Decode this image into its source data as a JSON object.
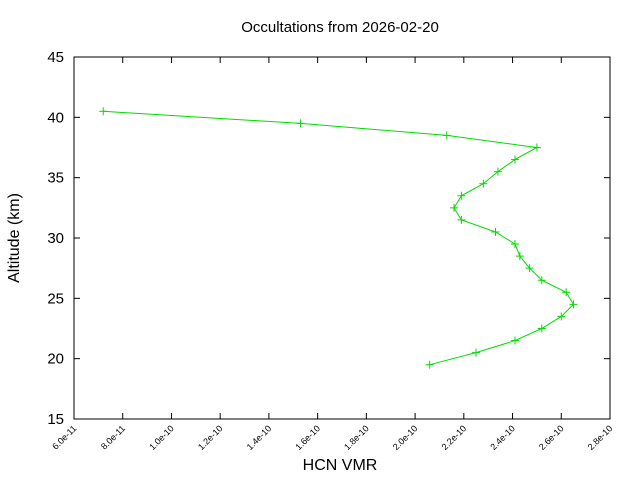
{
  "chart_data": {
    "type": "line",
    "title": "Occultations from 2026-02-20",
    "xlabel": "HCN VMR",
    "ylabel": "Altitude (km)",
    "xlim": [
      6e-11,
      2.8e-10
    ],
    "ylim": [
      15,
      45
    ],
    "x_ticks": [
      6e-11,
      8e-11,
      1e-10,
      1.2e-10,
      1.4e-10,
      1.6e-10,
      1.8e-10,
      2e-10,
      2.2e-10,
      2.4e-10,
      2.6e-10,
      2.8e-10
    ],
    "x_tick_labels": [
      "6.0e-11",
      "8.0e-11",
      "1.0e-10",
      "1.2e-10",
      "1.4e-10",
      "1.6e-10",
      "1.8e-10",
      "2.0e-10",
      "2.2e-10",
      "2.4e-10",
      "2.6e-10",
      "2.8e-10"
    ],
    "y_ticks": [
      15,
      20,
      25,
      30,
      35,
      40,
      45
    ],
    "y_tick_labels": [
      "15",
      "20",
      "25",
      "30",
      "35",
      "40",
      "45"
    ],
    "grid": false,
    "legend": "none",
    "series": [
      {
        "color": "#00dd00",
        "marker": "plus",
        "points": [
          {
            "x": 7.2e-11,
            "y": 40.5
          },
          {
            "x": 1.53e-10,
            "y": 39.5
          },
          {
            "x": 2.13e-10,
            "y": 38.5
          },
          {
            "x": 2.5e-10,
            "y": 37.5
          },
          {
            "x": 2.41e-10,
            "y": 36.5
          },
          {
            "x": 2.34e-10,
            "y": 35.5
          },
          {
            "x": 2.28e-10,
            "y": 34.5
          },
          {
            "x": 2.19e-10,
            "y": 33.5
          },
          {
            "x": 2.16e-10,
            "y": 32.5
          },
          {
            "x": 2.19e-10,
            "y": 31.5
          },
          {
            "x": 2.33e-10,
            "y": 30.5
          },
          {
            "x": 2.41e-10,
            "y": 29.5
          },
          {
            "x": 2.43e-10,
            "y": 28.5
          },
          {
            "x": 2.47e-10,
            "y": 27.5
          },
          {
            "x": 2.52e-10,
            "y": 26.5
          },
          {
            "x": 2.62e-10,
            "y": 25.5
          },
          {
            "x": 2.65e-10,
            "y": 24.5
          },
          {
            "x": 2.6e-10,
            "y": 23.5
          },
          {
            "x": 2.52e-10,
            "y": 22.5
          },
          {
            "x": 2.41e-10,
            "y": 21.5
          },
          {
            "x": 2.25e-10,
            "y": 20.5
          },
          {
            "x": 2.06e-10,
            "y": 19.5
          }
        ]
      }
    ]
  }
}
